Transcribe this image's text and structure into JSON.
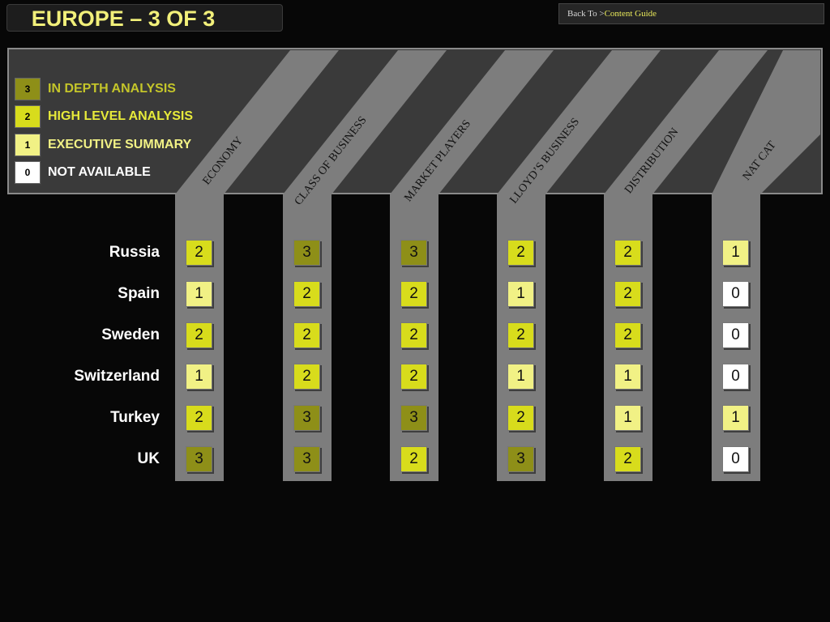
{
  "header": {
    "title": "EUROPE – 3 OF 3",
    "back_prefix": "Back To >",
    "back_link": "Content Guide"
  },
  "legend": [
    {
      "code": "3",
      "label": "IN DEPTH ANALYSIS",
      "color": "#8e8f18",
      "label_color": "#c4c52a"
    },
    {
      "code": "2",
      "label": "HIGH LEVEL ANALYSIS",
      "color": "#d8dc1c",
      "label_color": "#e7ea3a"
    },
    {
      "code": "1",
      "label": "EXECUTIVE SUMMARY",
      "color": "#f1f185",
      "label_color": "#f1f185"
    },
    {
      "code": "0",
      "label": "NOT AVAILABLE",
      "color": "#ffffff",
      "label_color": "#ffffff"
    }
  ],
  "columns": [
    "ECONOMY",
    "CLASS OF BUSINESS",
    "MARKET PLAYERS",
    "LLOYD’S BUSINESS",
    "DISTRIBUTION",
    "NAT CAT"
  ],
  "rows": [
    {
      "country": "Russia",
      "values": [
        2,
        3,
        3,
        2,
        2,
        1
      ]
    },
    {
      "country": "Spain",
      "values": [
        1,
        2,
        2,
        1,
        2,
        0
      ]
    },
    {
      "country": "Sweden",
      "values": [
        2,
        2,
        2,
        2,
        2,
        0
      ]
    },
    {
      "country": "Switzerland",
      "values": [
        1,
        2,
        2,
        1,
        1,
        0
      ]
    },
    {
      "country": "Turkey",
      "values": [
        2,
        3,
        3,
        2,
        1,
        1
      ]
    },
    {
      "country": "UK",
      "values": [
        3,
        3,
        2,
        3,
        2,
        0
      ]
    }
  ],
  "colors": {
    "page_background": "#070707",
    "panel": "#3a3a3a",
    "band": "#7d7d7d",
    "accent": "#f2f07a"
  }
}
